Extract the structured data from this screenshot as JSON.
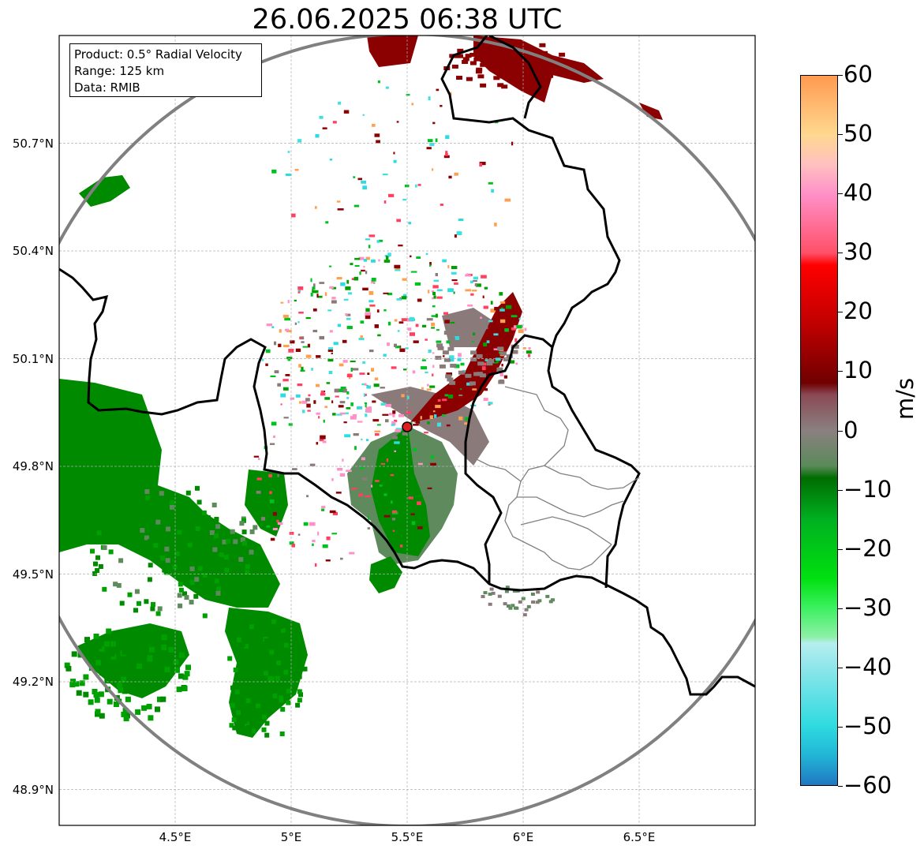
{
  "title": "26.06.2025 06:38 UTC",
  "info": {
    "product": "Product: 0.5° Radial Velocity",
    "range": "Range: 125 km",
    "source": "Data: RMIB"
  },
  "axes": {
    "lat_labels": [
      "50.7°N",
      "50.4°N",
      "50.1°N",
      "49.8°N",
      "49.5°N",
      "49.2°N",
      "48.9°N"
    ],
    "lon_labels": [
      "4.5°E",
      "5°E",
      "5.5°E",
      "6°E",
      "6.5°E"
    ],
    "lat_values": [
      50.7,
      50.4,
      50.1,
      49.8,
      49.5,
      49.2,
      48.9
    ],
    "lon_values": [
      4.5,
      5.0,
      5.5,
      6.0,
      6.5
    ],
    "lat_range": [
      48.8,
      51.0
    ],
    "lon_range": [
      4.0,
      7.0
    ]
  },
  "radar_site": {
    "lat": 49.91,
    "lon": 5.5
  },
  "colorbar": {
    "unit": "m/s",
    "ticks": [
      "60",
      "50",
      "40",
      "30",
      "20",
      "10",
      "0",
      "−10",
      "−20",
      "−30",
      "−40",
      "−50",
      "−60"
    ],
    "range": [
      -60,
      60
    ],
    "stops": [
      {
        "v": -60,
        "c": "#1f78c2"
      },
      {
        "v": -55,
        "c": "#22b5d6"
      },
      {
        "v": -50,
        "c": "#2edbe0"
      },
      {
        "v": -40,
        "c": "#8fe6ea"
      },
      {
        "v": -36,
        "c": "#b6eef0"
      },
      {
        "v": -35,
        "c": "#8ff0a8"
      },
      {
        "v": -30,
        "c": "#3cf060"
      },
      {
        "v": -25,
        "c": "#00e010"
      },
      {
        "v": -15,
        "c": "#00b020"
      },
      {
        "v": -8,
        "c": "#006c00"
      },
      {
        "v": -6,
        "c": "#5a8a5a"
      },
      {
        "v": 0,
        "c": "#8a8080"
      },
      {
        "v": 6,
        "c": "#8a4a55"
      },
      {
        "v": 8,
        "c": "#700000"
      },
      {
        "v": 18,
        "c": "#c00000"
      },
      {
        "v": 28,
        "c": "#ff0000"
      },
      {
        "v": 30,
        "c": "#ff5068"
      },
      {
        "v": 40,
        "c": "#ff90c8"
      },
      {
        "v": 45,
        "c": "#ffc0c0"
      },
      {
        "v": 50,
        "c": "#ffd890"
      },
      {
        "v": 60,
        "c": "#ff9a50"
      }
    ]
  },
  "colors": {
    "inbound_strong": "#008a00",
    "inbound_weak": "#5e8a5e",
    "near_zero": "#8a7a7a",
    "outbound": "#8b0000",
    "border": "#000000",
    "range_ring": "#808080"
  }
}
